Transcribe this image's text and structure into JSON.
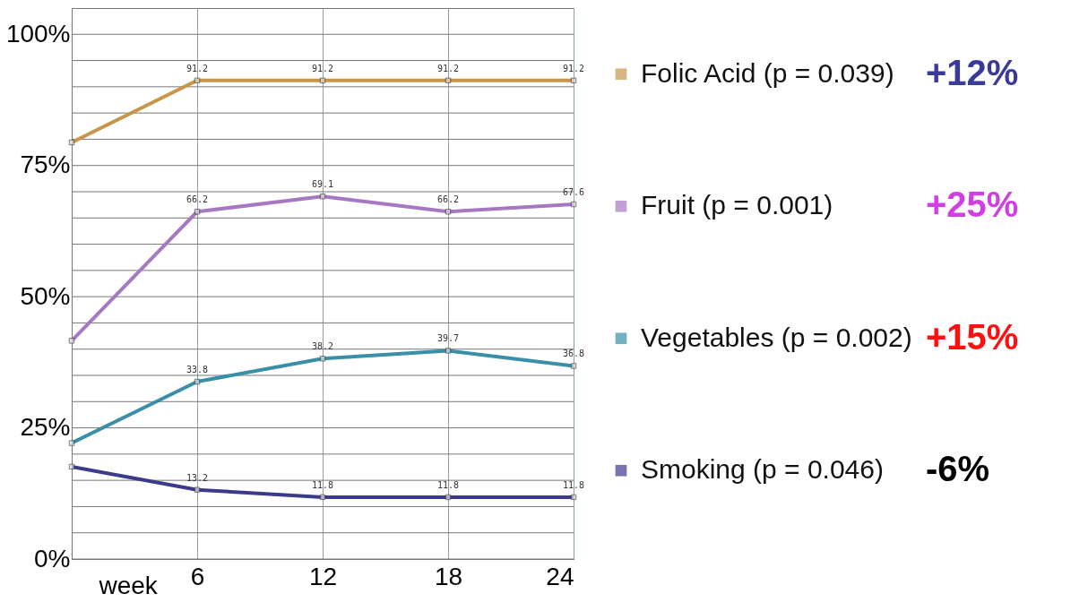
{
  "chart_data": {
    "type": "line",
    "xlabel": "week",
    "x": [
      0,
      6,
      12,
      18,
      24
    ],
    "series": [
      {
        "name": "Folic Acid (p = 0.039)",
        "color": "#c8954a",
        "values": [
          79.4,
          91.2,
          91.2,
          91.2,
          91.2
        ],
        "value_labels": [
          null,
          "91.2",
          "91.2",
          "91.2",
          "91.2"
        ]
      },
      {
        "name": "Fruit (p = 0.001)",
        "color": "#a678c2",
        "values": [
          41.6,
          66.2,
          69.1,
          66.2,
          67.6
        ],
        "value_labels": [
          null,
          "66.2",
          "69.1",
          "66.2",
          "67.6"
        ]
      },
      {
        "name": "Vegetables (p = 0.002)",
        "color": "#3a8fa8",
        "values": [
          22.1,
          33.8,
          38.2,
          39.7,
          36.8
        ],
        "value_labels": [
          null,
          "33.8",
          "38.2",
          "39.7",
          "36.8"
        ]
      },
      {
        "name": "Smoking (p = 0.046)",
        "color": "#3c3a8a",
        "values": [
          17.6,
          13.2,
          11.8,
          11.8,
          11.8
        ],
        "value_labels": [
          null,
          "13.2",
          "11.8",
          "11.8",
          "11.8"
        ]
      }
    ],
    "annotations": [
      "+12%",
      "+25%",
      "+15%",
      "-6%"
    ],
    "xlim": [
      0,
      24
    ],
    "xticks": [
      6,
      12,
      18,
      24
    ],
    "ylim": [
      0,
      105
    ],
    "yticks": [
      {
        "value": 0,
        "label": "0%"
      },
      {
        "value": 5,
        "label": null
      },
      {
        "value": 10,
        "label": null
      },
      {
        "value": 15,
        "label": null
      },
      {
        "value": 20,
        "label": null
      },
      {
        "value": 25,
        "label": "25%"
      },
      {
        "value": 30,
        "label": null
      },
      {
        "value": 35,
        "label": null
      },
      {
        "value": 40,
        "label": null
      },
      {
        "value": 45,
        "label": null
      },
      {
        "value": 50,
        "label": "50%"
      },
      {
        "value": 55,
        "label": null
      },
      {
        "value": 60,
        "label": null
      },
      {
        "value": 65,
        "label": null
      },
      {
        "value": 70,
        "label": null
      },
      {
        "value": 75,
        "label": "75%"
      },
      {
        "value": 80,
        "label": null
      },
      {
        "value": 85,
        "label": null
      },
      {
        "value": 90,
        "label": null
      },
      {
        "value": 95,
        "label": null
      },
      {
        "value": 100,
        "label": "100%"
      }
    ],
    "grid": true,
    "legend": "right",
    "marker": "square",
    "line_style": "solid"
  }
}
